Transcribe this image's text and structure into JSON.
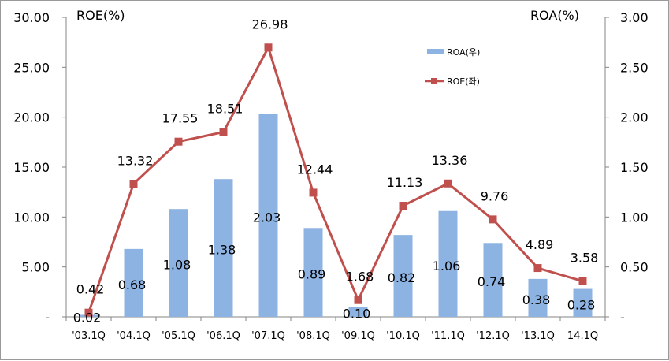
{
  "chart_data": {
    "type": "bar+line",
    "categories": [
      "'03.1Q",
      "'04.1Q",
      "'05.1Q",
      "'06.1Q",
      "'07.1Q",
      "'08.1Q",
      "'09.1Q",
      "'10.1Q",
      "'11.1Q",
      "'12.1Q",
      "'13.1Q",
      "14.1Q"
    ],
    "series": [
      {
        "name": "ROA(우)",
        "type": "bar",
        "axis": "right",
        "color": "#8db3e2",
        "values": [
          0.02,
          0.68,
          1.08,
          1.38,
          2.03,
          0.89,
          0.1,
          0.82,
          1.06,
          0.74,
          0.38,
          0.28
        ],
        "labels": [
          "0.02",
          "0.68",
          "1.08",
          "1.38",
          "2.03",
          "0.89",
          "0.10",
          "0.82",
          "1.06",
          "0.74",
          "0.38",
          "0.28"
        ]
      },
      {
        "name": "ROE(좌)",
        "type": "line",
        "axis": "left",
        "color": "#c0504d",
        "values": [
          0.42,
          13.32,
          17.55,
          18.51,
          26.98,
          12.44,
          1.68,
          11.13,
          13.36,
          9.76,
          4.89,
          3.58
        ],
        "labels": [
          "0.42",
          "13.32",
          "17.55",
          "18.51",
          "26.98",
          "12.44",
          "1.68",
          "11.13",
          "13.36",
          "9.76",
          "4.89",
          "3.58"
        ]
      }
    ],
    "ylabel": "ROE(%)",
    "y2label": "ROA(%)",
    "ylim": [
      0,
      30
    ],
    "y2lim": [
      0,
      3
    ],
    "yticks": [
      "-",
      "5.00",
      "10.00",
      "15.00",
      "20.00",
      "25.00",
      "30.00"
    ],
    "y2ticks": [
      "-",
      "0.50",
      "1.00",
      "1.50",
      "2.00",
      "2.50",
      "3.00"
    ],
    "grid": false,
    "legend_position": "top-right"
  }
}
